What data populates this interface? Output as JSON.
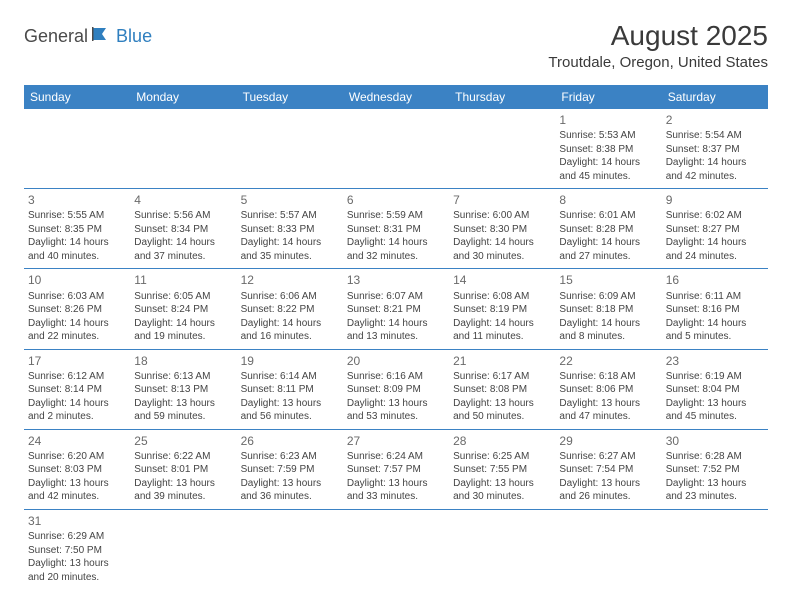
{
  "logo": {
    "general": "General",
    "blue": "Blue"
  },
  "title": "August 2025",
  "location": "Troutdale, Oregon, United States",
  "colors": {
    "header_bg": "#3b82c4",
    "header_text": "#ffffff",
    "border": "#3b82c4",
    "logo_gray": "#4a4a4a",
    "logo_blue": "#2f7fbf"
  },
  "weekdays": [
    "Sunday",
    "Monday",
    "Tuesday",
    "Wednesday",
    "Thursday",
    "Friday",
    "Saturday"
  ],
  "weeks": [
    [
      null,
      null,
      null,
      null,
      null,
      {
        "d": "1",
        "sr": "Sunrise: 5:53 AM",
        "ss": "Sunset: 8:38 PM",
        "dl1": "Daylight: 14 hours",
        "dl2": "and 45 minutes."
      },
      {
        "d": "2",
        "sr": "Sunrise: 5:54 AM",
        "ss": "Sunset: 8:37 PM",
        "dl1": "Daylight: 14 hours",
        "dl2": "and 42 minutes."
      }
    ],
    [
      {
        "d": "3",
        "sr": "Sunrise: 5:55 AM",
        "ss": "Sunset: 8:35 PM",
        "dl1": "Daylight: 14 hours",
        "dl2": "and 40 minutes."
      },
      {
        "d": "4",
        "sr": "Sunrise: 5:56 AM",
        "ss": "Sunset: 8:34 PM",
        "dl1": "Daylight: 14 hours",
        "dl2": "and 37 minutes."
      },
      {
        "d": "5",
        "sr": "Sunrise: 5:57 AM",
        "ss": "Sunset: 8:33 PM",
        "dl1": "Daylight: 14 hours",
        "dl2": "and 35 minutes."
      },
      {
        "d": "6",
        "sr": "Sunrise: 5:59 AM",
        "ss": "Sunset: 8:31 PM",
        "dl1": "Daylight: 14 hours",
        "dl2": "and 32 minutes."
      },
      {
        "d": "7",
        "sr": "Sunrise: 6:00 AM",
        "ss": "Sunset: 8:30 PM",
        "dl1": "Daylight: 14 hours",
        "dl2": "and 30 minutes."
      },
      {
        "d": "8",
        "sr": "Sunrise: 6:01 AM",
        "ss": "Sunset: 8:28 PM",
        "dl1": "Daylight: 14 hours",
        "dl2": "and 27 minutes."
      },
      {
        "d": "9",
        "sr": "Sunrise: 6:02 AM",
        "ss": "Sunset: 8:27 PM",
        "dl1": "Daylight: 14 hours",
        "dl2": "and 24 minutes."
      }
    ],
    [
      {
        "d": "10",
        "sr": "Sunrise: 6:03 AM",
        "ss": "Sunset: 8:26 PM",
        "dl1": "Daylight: 14 hours",
        "dl2": "and 22 minutes."
      },
      {
        "d": "11",
        "sr": "Sunrise: 6:05 AM",
        "ss": "Sunset: 8:24 PM",
        "dl1": "Daylight: 14 hours",
        "dl2": "and 19 minutes."
      },
      {
        "d": "12",
        "sr": "Sunrise: 6:06 AM",
        "ss": "Sunset: 8:22 PM",
        "dl1": "Daylight: 14 hours",
        "dl2": "and 16 minutes."
      },
      {
        "d": "13",
        "sr": "Sunrise: 6:07 AM",
        "ss": "Sunset: 8:21 PM",
        "dl1": "Daylight: 14 hours",
        "dl2": "and 13 minutes."
      },
      {
        "d": "14",
        "sr": "Sunrise: 6:08 AM",
        "ss": "Sunset: 8:19 PM",
        "dl1": "Daylight: 14 hours",
        "dl2": "and 11 minutes."
      },
      {
        "d": "15",
        "sr": "Sunrise: 6:09 AM",
        "ss": "Sunset: 8:18 PM",
        "dl1": "Daylight: 14 hours",
        "dl2": "and 8 minutes."
      },
      {
        "d": "16",
        "sr": "Sunrise: 6:11 AM",
        "ss": "Sunset: 8:16 PM",
        "dl1": "Daylight: 14 hours",
        "dl2": "and 5 minutes."
      }
    ],
    [
      {
        "d": "17",
        "sr": "Sunrise: 6:12 AM",
        "ss": "Sunset: 8:14 PM",
        "dl1": "Daylight: 14 hours",
        "dl2": "and 2 minutes."
      },
      {
        "d": "18",
        "sr": "Sunrise: 6:13 AM",
        "ss": "Sunset: 8:13 PM",
        "dl1": "Daylight: 13 hours",
        "dl2": "and 59 minutes."
      },
      {
        "d": "19",
        "sr": "Sunrise: 6:14 AM",
        "ss": "Sunset: 8:11 PM",
        "dl1": "Daylight: 13 hours",
        "dl2": "and 56 minutes."
      },
      {
        "d": "20",
        "sr": "Sunrise: 6:16 AM",
        "ss": "Sunset: 8:09 PM",
        "dl1": "Daylight: 13 hours",
        "dl2": "and 53 minutes."
      },
      {
        "d": "21",
        "sr": "Sunrise: 6:17 AM",
        "ss": "Sunset: 8:08 PM",
        "dl1": "Daylight: 13 hours",
        "dl2": "and 50 minutes."
      },
      {
        "d": "22",
        "sr": "Sunrise: 6:18 AM",
        "ss": "Sunset: 8:06 PM",
        "dl1": "Daylight: 13 hours",
        "dl2": "and 47 minutes."
      },
      {
        "d": "23",
        "sr": "Sunrise: 6:19 AM",
        "ss": "Sunset: 8:04 PM",
        "dl1": "Daylight: 13 hours",
        "dl2": "and 45 minutes."
      }
    ],
    [
      {
        "d": "24",
        "sr": "Sunrise: 6:20 AM",
        "ss": "Sunset: 8:03 PM",
        "dl1": "Daylight: 13 hours",
        "dl2": "and 42 minutes."
      },
      {
        "d": "25",
        "sr": "Sunrise: 6:22 AM",
        "ss": "Sunset: 8:01 PM",
        "dl1": "Daylight: 13 hours",
        "dl2": "and 39 minutes."
      },
      {
        "d": "26",
        "sr": "Sunrise: 6:23 AM",
        "ss": "Sunset: 7:59 PM",
        "dl1": "Daylight: 13 hours",
        "dl2": "and 36 minutes."
      },
      {
        "d": "27",
        "sr": "Sunrise: 6:24 AM",
        "ss": "Sunset: 7:57 PM",
        "dl1": "Daylight: 13 hours",
        "dl2": "and 33 minutes."
      },
      {
        "d": "28",
        "sr": "Sunrise: 6:25 AM",
        "ss": "Sunset: 7:55 PM",
        "dl1": "Daylight: 13 hours",
        "dl2": "and 30 minutes."
      },
      {
        "d": "29",
        "sr": "Sunrise: 6:27 AM",
        "ss": "Sunset: 7:54 PM",
        "dl1": "Daylight: 13 hours",
        "dl2": "and 26 minutes."
      },
      {
        "d": "30",
        "sr": "Sunrise: 6:28 AM",
        "ss": "Sunset: 7:52 PM",
        "dl1": "Daylight: 13 hours",
        "dl2": "and 23 minutes."
      }
    ],
    [
      {
        "d": "31",
        "sr": "Sunrise: 6:29 AM",
        "ss": "Sunset: 7:50 PM",
        "dl1": "Daylight: 13 hours",
        "dl2": "and 20 minutes."
      },
      null,
      null,
      null,
      null,
      null,
      null
    ]
  ]
}
